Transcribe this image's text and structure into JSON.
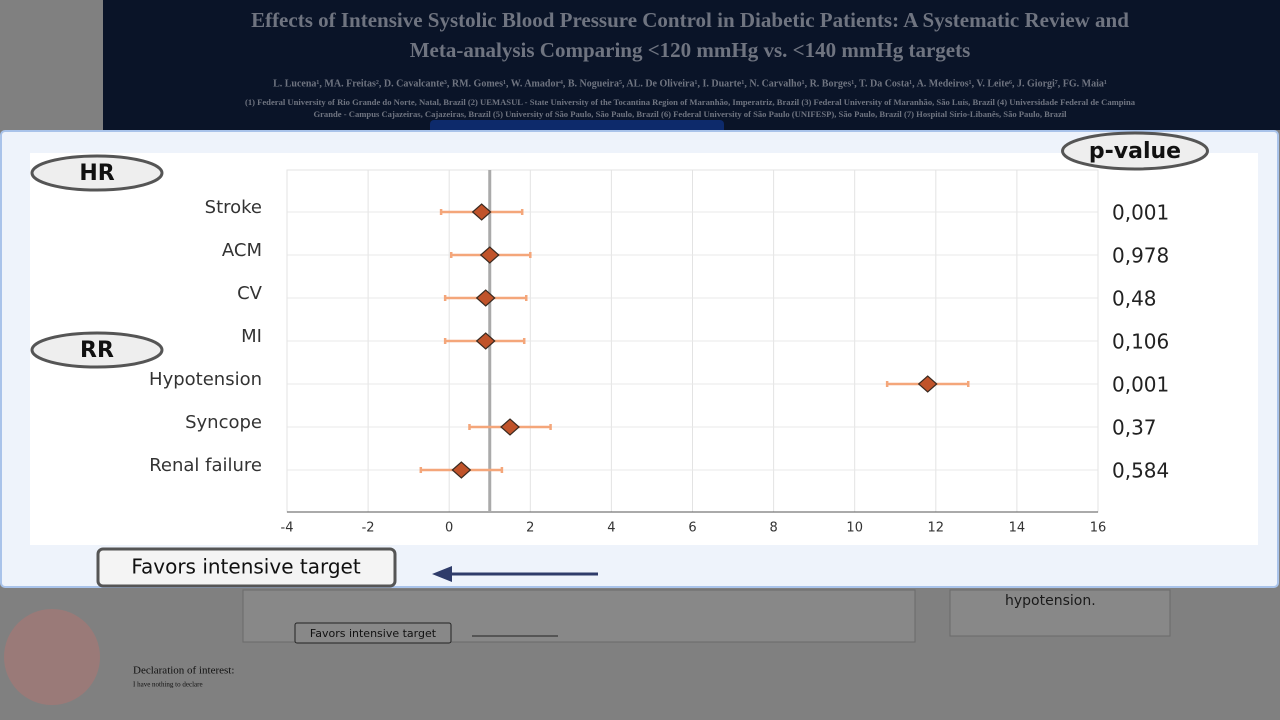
{
  "header": {
    "title": [
      "Effects of Intensive Systolic Blood Pressure Control in Diabetic Patients: A Systematic Review and",
      "Meta-analysis Comparing <120 mmHg vs. <140 mmHg targets"
    ],
    "authors": "L. Lucena¹, MA. Freitas², D. Cavalcante³, RM. Gomes¹, W. Amador⁴, B. Nogueira⁵, AL. De Oliveira¹, I. Duarte¹, N. Carvalho¹, R. Borges¹, T. Da Costa¹, A. Medeiros¹, V. Leite⁶, J. Giorgi⁷, FG. Maia¹",
    "affiliations": [
      "(1) Federal University of Rio Grande do Norte, Natal, Brazil (2) UEMASUL - State University of the Tocantina Region of Maranhão, Imperatriz, Brazil (3) Federal University of Maranhão, São Luís, Brazil (4) Universidade Federal de Campina",
      "Grande - Campus Cajazeiras, Cajazeiras, Brazil (5) University of São Paulo, São Paulo, Brazil (6) Federal University of São Paulo (UNIFESP), São Paulo, Brazil (7) Hospital Sírio-Libanês, São Paulo, Brazil"
    ]
  },
  "chart_data": {
    "type": "forest",
    "categories": [
      "Stroke",
      "ACM",
      "CV",
      "MI",
      "Hypotension",
      "Syncope",
      "Renal failure"
    ],
    "values": [
      0.8,
      1.0,
      0.9,
      0.9,
      11.8,
      1.5,
      0.3
    ],
    "lower": [
      -0.2,
      0.05,
      -0.1,
      -0.1,
      10.8,
      0.5,
      -0.7
    ],
    "upper": [
      1.8,
      2.0,
      1.9,
      1.85,
      12.8,
      2.5,
      1.3
    ],
    "p_values": [
      "0,001",
      "0,978",
      "0,48",
      "0,106",
      "0,001",
      "0,37",
      "0,584"
    ],
    "p_value_title": "p-value",
    "group_labels": [
      "HR",
      "RR"
    ],
    "favors_label": "Favors intensive target",
    "reference_line": 1,
    "color": "#c0532a",
    "ci_color": "#f4a67a",
    "xlim": [
      -4,
      16
    ],
    "xticks": [
      -4,
      -2,
      0,
      2,
      4,
      6,
      8,
      10,
      12,
      14,
      16
    ],
    "grid": true
  },
  "background": {
    "side_text": "hypotension.",
    "favors_small": "Favors intensive target",
    "declaration_title": "Declaration of interest:",
    "declaration_text": "I have nothing to declare"
  }
}
